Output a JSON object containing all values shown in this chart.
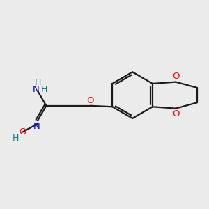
{
  "background_color": "#ebebeb",
  "bond_color": "#1a1a1a",
  "oxygen_color": "#ff0000",
  "nitrogen_color": "#0000cc",
  "hydrogen_color": "#008080",
  "figsize": [
    3.0,
    3.0
  ],
  "dpi": 100,
  "xlim": [
    0,
    10
  ],
  "ylim": [
    0,
    10
  ]
}
